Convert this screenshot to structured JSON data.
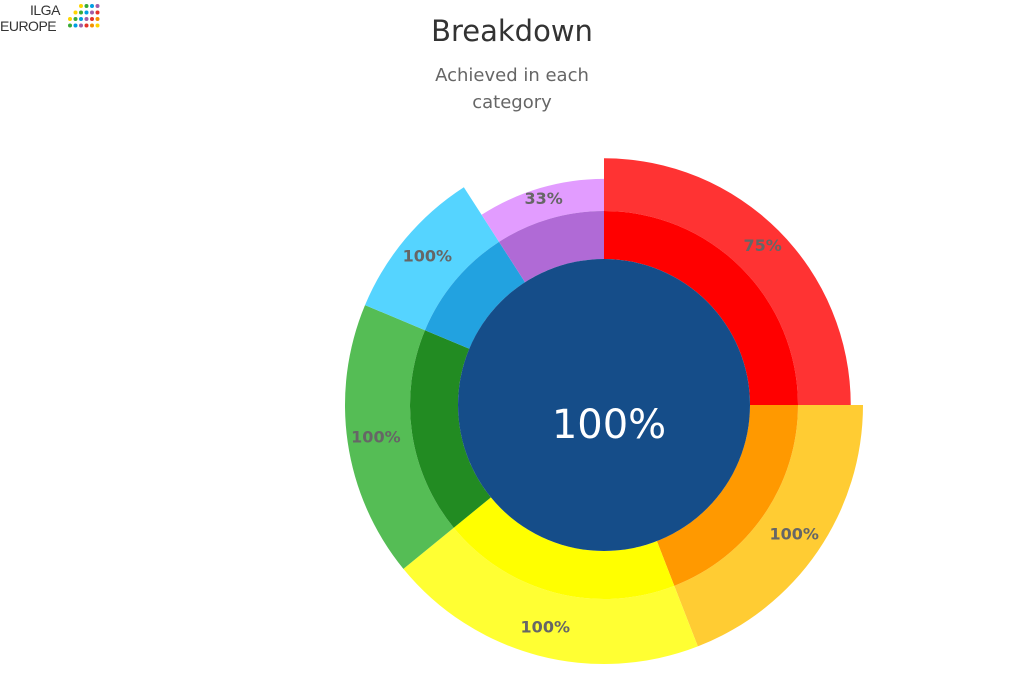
{
  "logo": {
    "line1": "ILGA",
    "line2": "EUROPE",
    "dot_colors": [
      "#e6332a",
      "#f39200",
      "#ffd500",
      "#3aaa35",
      "#009fe3",
      "#a05ea8"
    ]
  },
  "chart_data": {
    "type": "pie",
    "title": "Breakdown",
    "subtitle": "Achieved in each category",
    "center_label": "100%",
    "center_color": "#154d89",
    "categories": [
      {
        "label": "75%",
        "achieved_percent": 75,
        "share": 0.25,
        "inner_color": "#ff0000",
        "outer_color": "#ff3333"
      },
      {
        "label": "100%",
        "achieved_percent": 100,
        "share": 0.191,
        "inner_color": "#ff9900",
        "outer_color": "#ffcc33"
      },
      {
        "label": "100%",
        "achieved_percent": 100,
        "share": 0.2,
        "inner_color": "#ffff00",
        "outer_color": "#ffff33"
      },
      {
        "label": "100%",
        "achieved_percent": 100,
        "share": 0.172,
        "inner_color": "#228b22",
        "outer_color": "#55bd55"
      },
      {
        "label": "100%",
        "achieved_percent": 100,
        "share": 0.096,
        "inner_color": "#22a2e0",
        "outer_color": "#55d4ff"
      },
      {
        "label": "33%",
        "achieved_percent": 33,
        "share": 0.091,
        "inner_color": "#b06ad6",
        "outer_color": "#e29cff"
      }
    ]
  }
}
